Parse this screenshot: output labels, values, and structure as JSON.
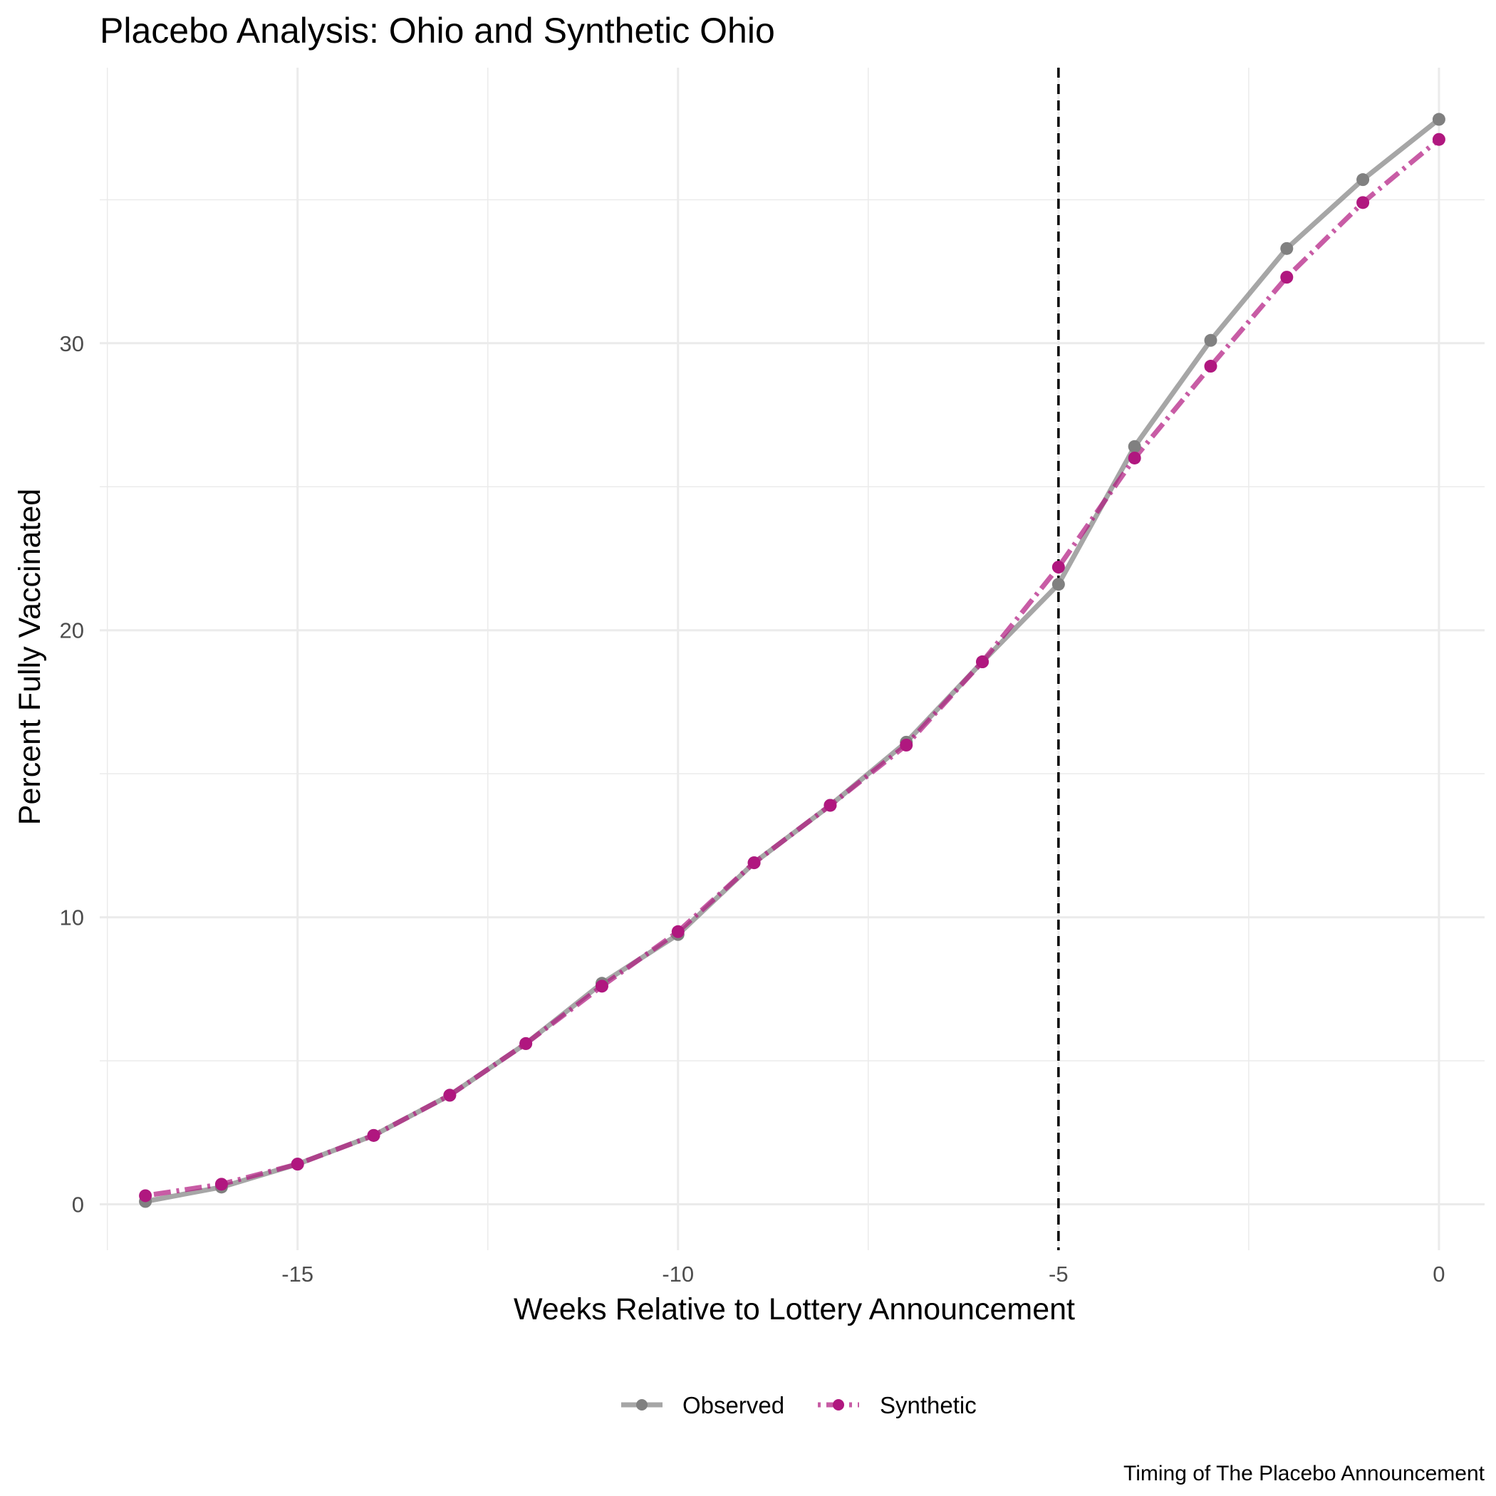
{
  "chart_data": {
    "type": "line",
    "title": "Placebo Analysis: Ohio and Synthetic Ohio",
    "xlabel": "Weeks Relative to Lottery Announcement",
    "ylabel": "Percent Fully Vaccinated",
    "caption": "Timing of The Placebo Announcement",
    "xlim": [
      -17.6,
      0.6
    ],
    "ylim": [
      -1.6,
      39.6
    ],
    "x_ticks": [
      -15,
      -10,
      -5,
      0
    ],
    "x_tick_labels": [
      "-15",
      "-10",
      "-5",
      "0"
    ],
    "x_minor_ticks": [
      -17.5,
      -12.5,
      -7.5,
      -2.5
    ],
    "y_ticks": [
      0,
      10,
      20,
      30
    ],
    "y_tick_labels": [
      "0",
      "10",
      "20",
      "30"
    ],
    "y_minor_ticks": [
      5,
      15,
      25,
      35
    ],
    "grid": true,
    "legend_position": "bottom",
    "vline": {
      "x": -5,
      "style": "dashed",
      "color": "#000000"
    },
    "x": [
      -17,
      -16,
      -15,
      -14,
      -13,
      -12,
      -11,
      -10,
      -9,
      -8,
      -7,
      -6,
      -5,
      -4,
      -3,
      -2,
      -1,
      0
    ],
    "series": [
      {
        "name": "Observed",
        "color": "#808080",
        "line_style": "solid",
        "values": [
          0.1,
          0.6,
          1.4,
          2.4,
          3.8,
          5.6,
          7.7,
          9.4,
          11.9,
          13.9,
          16.1,
          18.9,
          21.6,
          26.4,
          30.1,
          33.3,
          35.7,
          37.8
        ]
      },
      {
        "name": "Synthetic",
        "color": "#b0177f",
        "line_style": "dotdash",
        "values": [
          0.3,
          0.7,
          1.4,
          2.4,
          3.8,
          5.6,
          7.6,
          9.5,
          11.9,
          13.9,
          16.0,
          18.9,
          22.2,
          26.0,
          29.2,
          32.3,
          34.9,
          37.1
        ]
      }
    ]
  }
}
